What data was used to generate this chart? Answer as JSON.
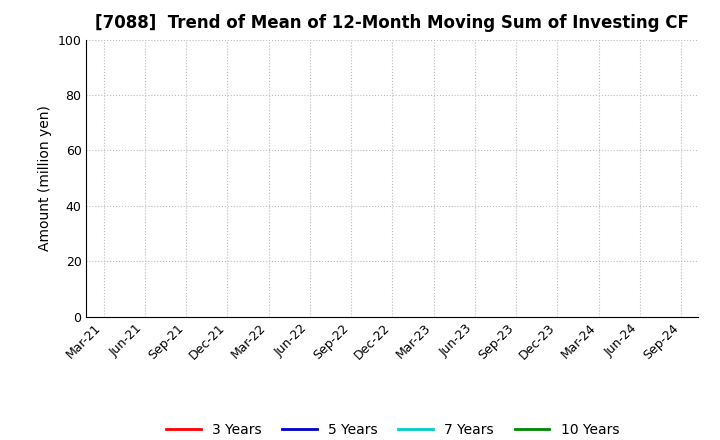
{
  "title": "[7088]  Trend of Mean of 12-Month Moving Sum of Investing CF",
  "ylabel": "Amount (million yen)",
  "ylim": [
    0,
    100
  ],
  "yticks": [
    0,
    20,
    40,
    60,
    80,
    100
  ],
  "x_tick_labels": [
    "Mar-21",
    "Jun-21",
    "Sep-21",
    "Dec-21",
    "Mar-22",
    "Jun-22",
    "Sep-22",
    "Dec-22",
    "Mar-23",
    "Jun-23",
    "Sep-23",
    "Dec-23",
    "Mar-24",
    "Jun-24",
    "Sep-24"
  ],
  "legend_entries": [
    {
      "label": "3 Years",
      "color": "#ff0000"
    },
    {
      "label": "5 Years",
      "color": "#0000cc"
    },
    {
      "label": "7 Years",
      "color": "#00cccc"
    },
    {
      "label": "10 Years",
      "color": "#008800"
    }
  ],
  "background_color": "#ffffff",
  "grid_color": "#bbbbbb",
  "title_fontsize": 12,
  "axis_label_fontsize": 10,
  "tick_fontsize": 9,
  "legend_fontsize": 10
}
